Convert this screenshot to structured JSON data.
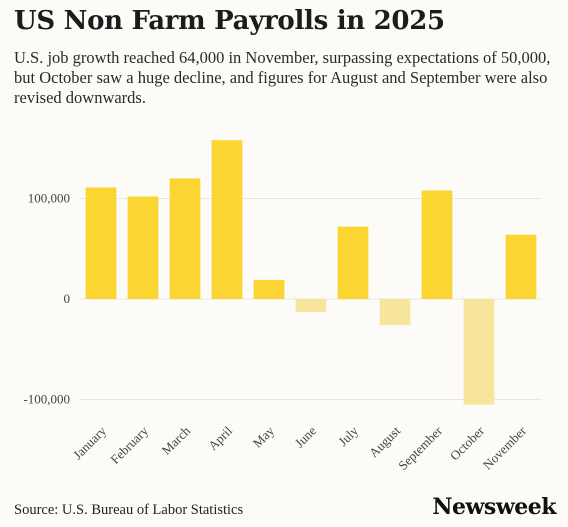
{
  "header": {
    "title": "US Non Farm Payrolls in 2025",
    "subtitle": "U.S. job growth reached 64,000 in November, surpassing expectations of 50,000, but October saw a huge decline, and figures for August and September were also revised downwards."
  },
  "footer": {
    "source": "Source: U.S. Bureau of Labor Statistics",
    "logo": "Newsweek"
  },
  "colors": {
    "positive": "#fbd531",
    "negative": "#f6e59b",
    "grid": "#e9e7e0",
    "tick_text": "#444444"
  },
  "chart_data": {
    "type": "bar",
    "title": "US Non Farm Payrolls in 2025",
    "categories": [
      "January",
      "February",
      "March",
      "April",
      "May",
      "June",
      "July",
      "August",
      "September",
      "October",
      "November"
    ],
    "values": [
      111000,
      102000,
      120000,
      158000,
      19000,
      -13000,
      72000,
      -26000,
      108000,
      -105000,
      64000
    ],
    "yticks": [
      100000,
      0,
      -100000
    ],
    "ytick_labels": [
      "100,000",
      "0",
      "-100,000"
    ],
    "ylim": [
      -120000,
      170000
    ],
    "grid": true,
    "xlabel": "",
    "ylabel": ""
  }
}
